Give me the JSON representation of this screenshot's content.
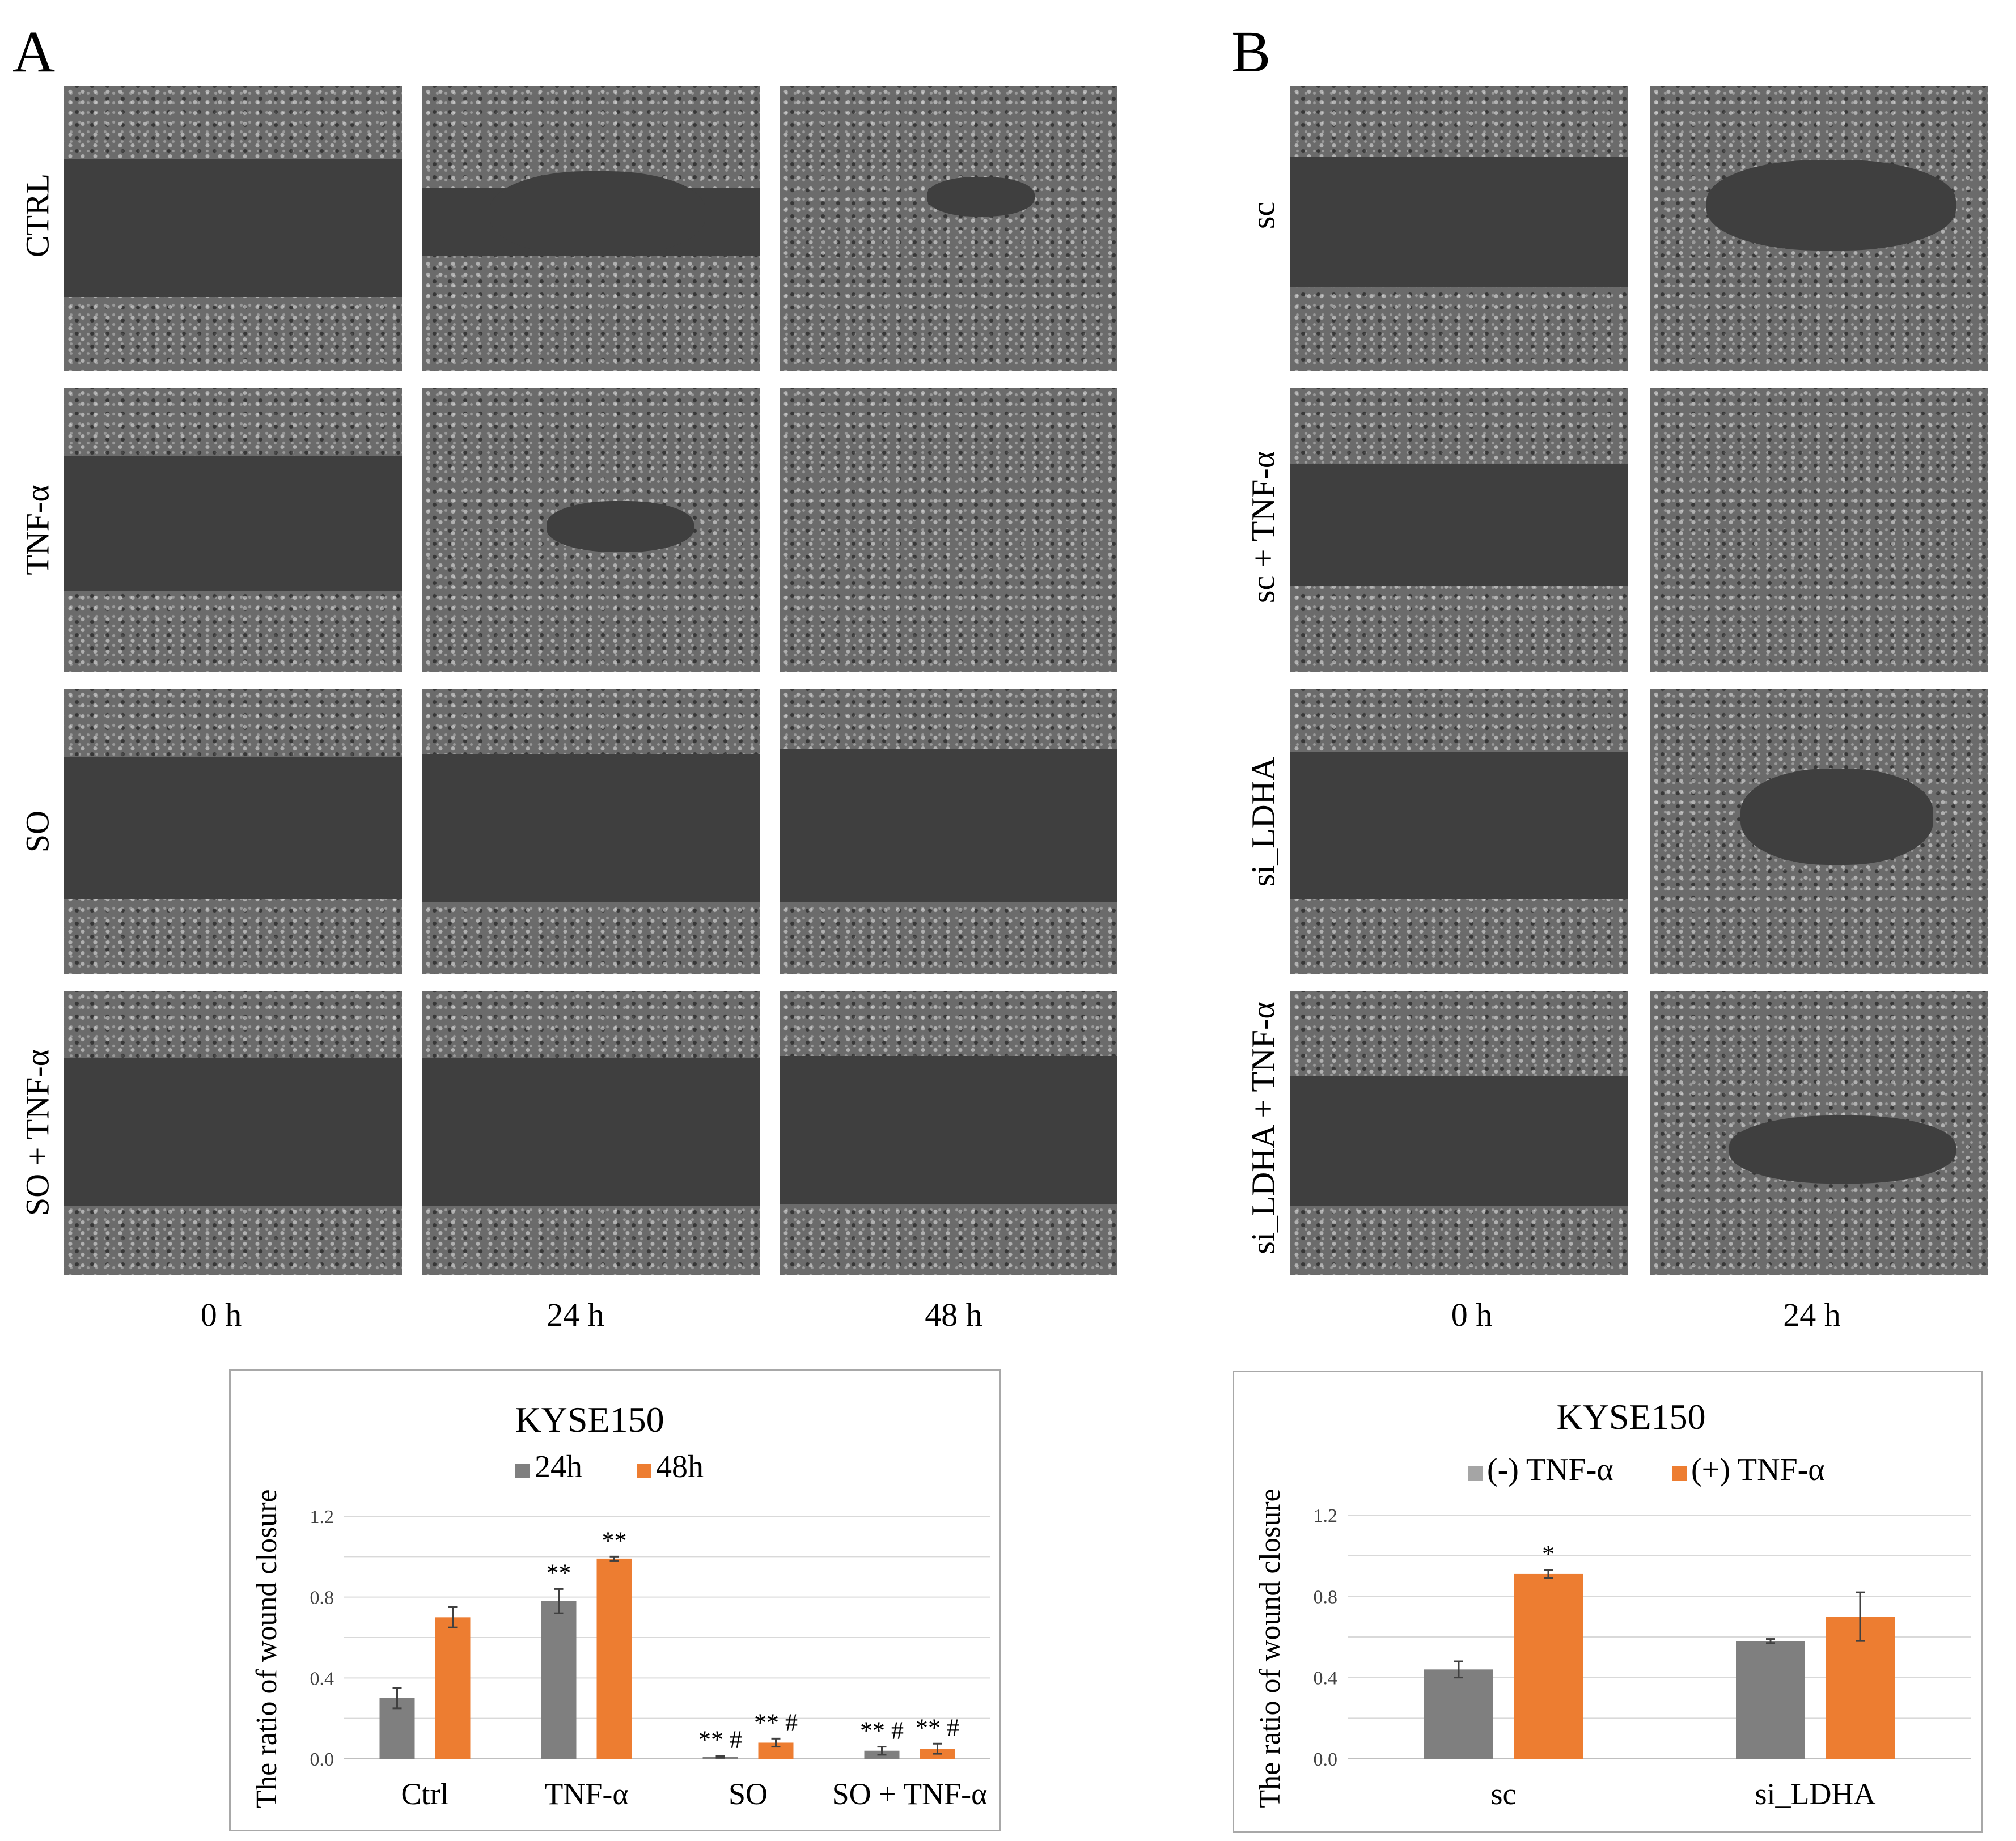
{
  "panelA": {
    "letter": "A",
    "rows": [
      "CTRL",
      "TNF-α",
      "SO",
      "SO + TNF-α"
    ],
    "columns": [
      "0 h",
      "24 h",
      "48 h"
    ]
  },
  "panelB": {
    "letter": "B",
    "rows": [
      "sc",
      "sc + TNF-α",
      "si_LDHA",
      "si_LDHA + TNF-α"
    ],
    "columns": [
      "0 h",
      "24 h"
    ]
  },
  "colors": {
    "grey": "#7f7f7f",
    "lightgrey": "#a5a5a5",
    "orange": "#ed7d31",
    "gridline": "#d9d9d9"
  },
  "chart_data": [
    {
      "type": "bar",
      "title": "KYSE150",
      "ylabel": "The ratio of wound closure",
      "ylim": [
        0,
        1.2
      ],
      "yticks": [
        "0.0",
        "0.4",
        "0.8",
        "1.2"
      ],
      "legend_placement": "top-center",
      "categories": [
        "Ctrl",
        "TNF-α",
        "SO",
        "SO + TNF-α"
      ],
      "series": [
        {
          "name": "24h",
          "color": "#7f7f7f",
          "values": [
            0.3,
            0.78,
            0.01,
            0.04
          ],
          "errors": [
            0.05,
            0.06,
            0.005,
            0.02
          ],
          "annotations": [
            "",
            "**",
            "** #",
            "** #"
          ]
        },
        {
          "name": "48h",
          "color": "#ed7d31",
          "values": [
            0.7,
            0.99,
            0.08,
            0.05
          ],
          "errors": [
            0.05,
            0.01,
            0.02,
            0.025
          ],
          "annotations": [
            "",
            "**",
            "** #",
            "** #"
          ]
        }
      ]
    },
    {
      "type": "bar",
      "title": "KYSE150",
      "ylabel": "The ratio of wound closure",
      "ylim": [
        0,
        1.2
      ],
      "yticks": [
        "0.0",
        "0.4",
        "0.8",
        "1.2"
      ],
      "legend_placement": "top-center",
      "categories": [
        "sc",
        "si_LDHA"
      ],
      "series": [
        {
          "name": "(-) TNF-α",
          "color": "#7f7f7f",
          "legend_color": "#a5a5a5",
          "values": [
            0.44,
            0.58
          ],
          "errors": [
            0.04,
            0.01
          ],
          "annotations": [
            "",
            ""
          ]
        },
        {
          "name": "(+) TNF-α",
          "color": "#ed7d31",
          "values": [
            0.91,
            0.7
          ],
          "errors": [
            0.02,
            0.12
          ],
          "annotations": [
            "*",
            ""
          ]
        }
      ]
    }
  ]
}
